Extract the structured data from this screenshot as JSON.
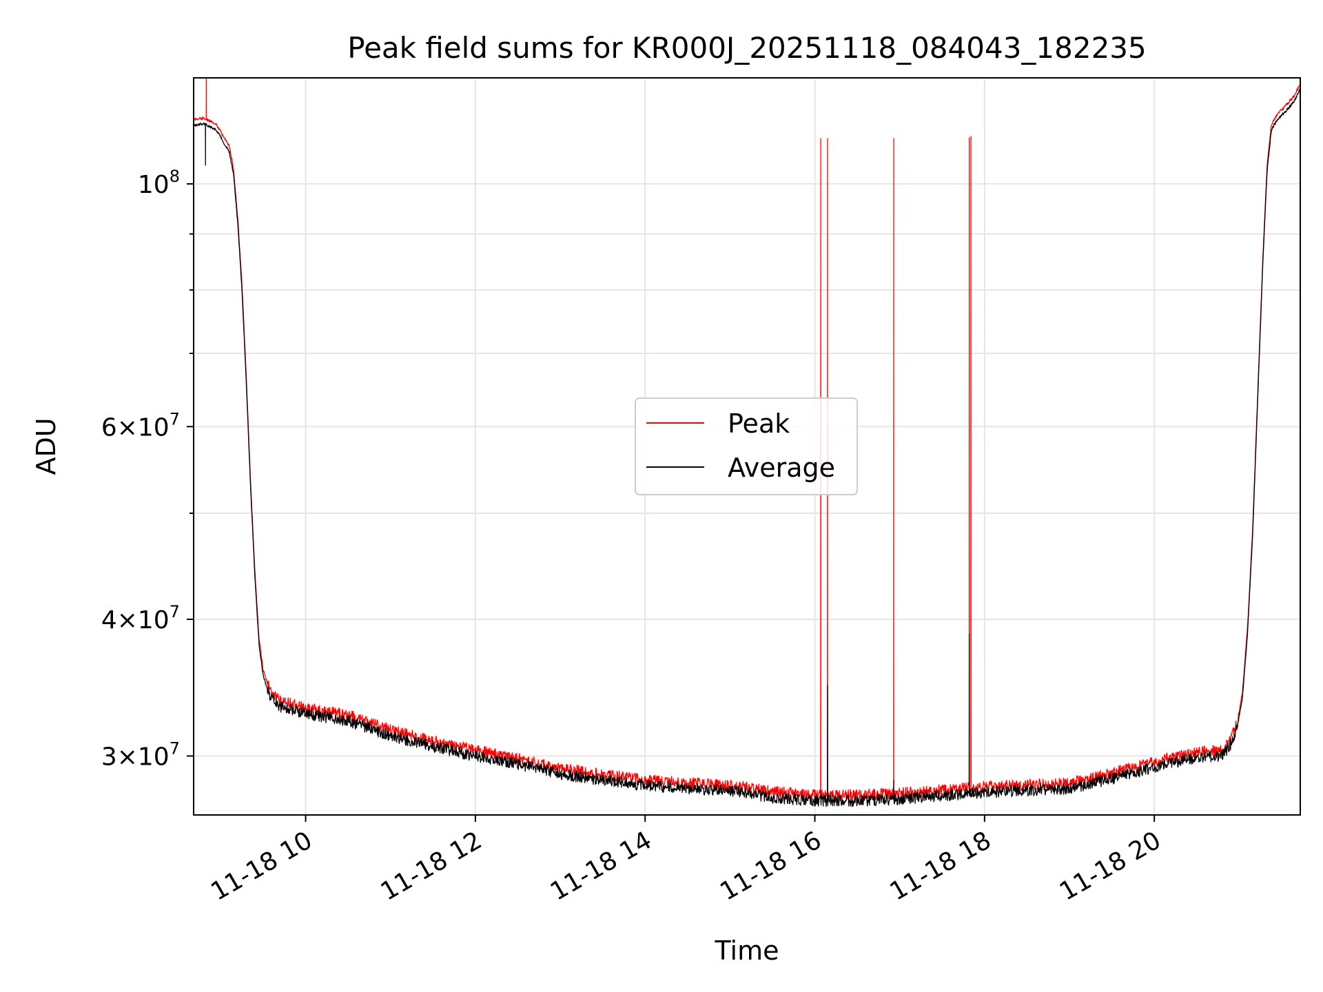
{
  "chart_data": {
    "type": "line",
    "title": "Peak field sums for KR000J_20251118_084043_182235",
    "xlabel": "Time",
    "ylabel": "ADU",
    "yscale": "log",
    "xlim": [
      8.68,
      21.72
    ],
    "ylim": [
      26500000,
      125000000
    ],
    "grid": true,
    "legend_position": "center",
    "x_ticks": [
      {
        "value": 10,
        "label": "11-18 10"
      },
      {
        "value": 12,
        "label": "11-18 12"
      },
      {
        "value": 14,
        "label": "11-18 14"
      },
      {
        "value": 16,
        "label": "11-18 16"
      },
      {
        "value": 18,
        "label": "11-18 18"
      },
      {
        "value": 20,
        "label": "11-18 20"
      }
    ],
    "y_ticks": [
      {
        "value": 30000000,
        "mantissa": "3",
        "exponent": "7"
      },
      {
        "value": 40000000,
        "mantissa": "4",
        "exponent": "7"
      },
      {
        "value": 60000000,
        "mantissa": "6",
        "exponent": "7"
      },
      {
        "value": 100000000,
        "mantissa": "",
        "exponent": "8"
      }
    ],
    "y_minor_ticks": [
      50000000,
      70000000,
      80000000,
      90000000
    ],
    "baseline_points": [
      [
        8.68,
        113000000
      ],
      [
        8.8,
        113500000
      ],
      [
        8.95,
        112000000
      ],
      [
        9.05,
        108500000
      ],
      [
        9.1,
        107000000
      ],
      [
        9.15,
        102000000
      ],
      [
        9.2,
        92000000
      ],
      [
        9.25,
        80000000
      ],
      [
        9.3,
        66000000
      ],
      [
        9.35,
        53000000
      ],
      [
        9.4,
        44000000
      ],
      [
        9.45,
        38000000
      ],
      [
        9.5,
        35500000
      ],
      [
        9.58,
        34000000
      ],
      [
        9.7,
        33300000
      ],
      [
        10.0,
        32800000
      ],
      [
        10.5,
        32300000
      ],
      [
        11.0,
        31300000
      ],
      [
        11.5,
        30600000
      ],
      [
        12.0,
        30000000
      ],
      [
        12.5,
        29500000
      ],
      [
        13.0,
        28900000
      ],
      [
        13.5,
        28500000
      ],
      [
        14.0,
        28200000
      ],
      [
        14.5,
        28000000
      ],
      [
        15.0,
        27900000
      ],
      [
        15.5,
        27500000
      ],
      [
        16.0,
        27300000
      ],
      [
        16.5,
        27300000
      ],
      [
        17.0,
        27400000
      ],
      [
        17.5,
        27600000
      ],
      [
        18.0,
        27800000
      ],
      [
        18.5,
        27900000
      ],
      [
        19.0,
        28000000
      ],
      [
        19.5,
        28600000
      ],
      [
        20.0,
        29300000
      ],
      [
        20.5,
        29900000
      ],
      [
        20.8,
        30000000
      ],
      [
        20.9,
        30700000
      ],
      [
        20.98,
        31800000
      ],
      [
        21.04,
        34000000
      ],
      [
        21.1,
        39000000
      ],
      [
        21.16,
        48000000
      ],
      [
        21.22,
        64000000
      ],
      [
        21.28,
        85000000
      ],
      [
        21.33,
        103000000
      ],
      [
        21.38,
        112000000
      ],
      [
        21.45,
        114500000
      ],
      [
        21.55,
        116500000
      ],
      [
        21.65,
        119000000
      ],
      [
        21.72,
        122000000
      ]
    ],
    "series": [
      {
        "name": "Peak",
        "color": "#ff0000",
        "points": [
          [
            8.68,
            113200000
          ],
          [
            21.72,
            122500000
          ]
        ],
        "offset_ratio": 1.012,
        "noise_ratio": 0.012,
        "spikes": [
          {
            "x": 8.83,
            "y": 125000000
          },
          {
            "x": 16.07,
            "y": 110000000
          },
          {
            "x": 16.15,
            "y": 110000000
          },
          {
            "x": 16.93,
            "y": 110000000
          },
          {
            "x": 17.82,
            "y": 110200000
          },
          {
            "x": 17.84,
            "y": 110500000
          }
        ]
      },
      {
        "name": "Average",
        "color": "#000000",
        "points": [
          [
            8.68,
            113000000
          ],
          [
            21.72,
            122000000
          ]
        ],
        "offset_ratio": 1.0,
        "noise_ratio": 0.012,
        "spikes": [
          {
            "x": 8.82,
            "y": 104000000
          },
          {
            "x": 16.15,
            "y": 34800000
          },
          {
            "x": 16.93,
            "y": 28500000
          },
          {
            "x": 17.82,
            "y": 38800000
          }
        ]
      }
    ],
    "legend": [
      {
        "label": "Peak",
        "color": "#ff0000"
      },
      {
        "label": "Average",
        "color": "#000000"
      }
    ]
  }
}
